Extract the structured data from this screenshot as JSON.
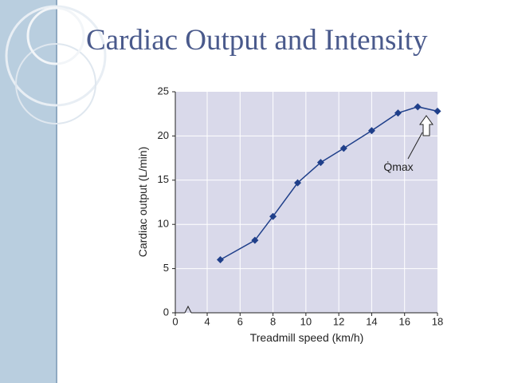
{
  "chart_data": {
    "type": "line",
    "title": "Cardiac Output and Intensity",
    "x_label": "Treadmill speed (km/h)",
    "y_label": "Cardiac output (L/min)",
    "annotation": "Q̇max",
    "x": [
      4.8,
      6.9,
      8,
      9.5,
      10.9,
      12.3,
      14,
      15.6,
      16.8,
      18
    ],
    "series": [
      {
        "name": "Cardiac output",
        "color": "#1f3f8a",
        "values": [
          6,
          8.2,
          10.9,
          14.7,
          17,
          18.6,
          20.6,
          22.6,
          23.3,
          22.8
        ]
      }
    ],
    "xlim": [
      0,
      18
    ],
    "x_break": [
      0,
      4
    ],
    "xticks": [
      0,
      4,
      6,
      8,
      10,
      12,
      14,
      16,
      18
    ],
    "ylim": [
      0,
      25
    ],
    "yticks": [
      0,
      5,
      10,
      15,
      20,
      25
    ],
    "grid": true
  }
}
